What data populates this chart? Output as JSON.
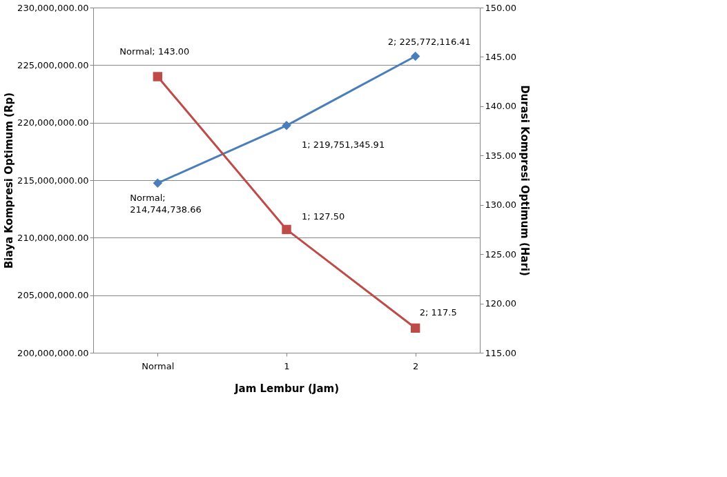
{
  "chart_data": {
    "type": "line",
    "xlabel": "Jam Lembur (Jam)",
    "ylabel": "Biaya Kompresi Optimum (Rp)",
    "y2label": "Durasi Kompresi Optimum (Hari)",
    "categories": [
      "Normal",
      "1",
      "2"
    ],
    "series": [
      {
        "color": "#4a7ebb",
        "marker": "diamond",
        "values": [
          214744738.66,
          219751345.91,
          225772116.41
        ],
        "value_labels": [
          "Normal;\n214,744,738.66",
          "1;  219,751,345.91",
          "2;  225,772,116.41"
        ]
      },
      {
        "color": "#be4b48",
        "marker": "square",
        "axis": "y2",
        "values": [
          143.0,
          127.5,
          117.5
        ],
        "value_labels": [
          "Normal; 143.00",
          "1; 127.50",
          "2; 117.5"
        ]
      }
    ],
    "ylim": [
      200000000,
      230000000
    ],
    "yticks": [
      {
        "value": 200000000,
        "label": "200,000,000.00"
      },
      {
        "value": 205000000,
        "label": "205,000,000.00"
      },
      {
        "value": 210000000,
        "label": "210,000,000.00"
      },
      {
        "value": 215000000,
        "label": "215,000,000.00"
      },
      {
        "value": 220000000,
        "label": "220,000,000.00"
      },
      {
        "value": 225000000,
        "label": "225,000,000.00"
      },
      {
        "value": 230000000,
        "label": "230,000,000.00"
      }
    ],
    "y2lim": [
      115,
      150
    ],
    "y2ticks": [
      {
        "value": 115,
        "label": "115.00"
      },
      {
        "value": 120,
        "label": "120.00"
      },
      {
        "value": 125,
        "label": "125.00"
      },
      {
        "value": 130,
        "label": "130.00"
      },
      {
        "value": 135,
        "label": "135.00"
      },
      {
        "value": 140,
        "label": "140.00"
      },
      {
        "value": 145,
        "label": "145.00"
      },
      {
        "value": 150,
        "label": "150.00"
      }
    ],
    "grid": "y",
    "line_style": "solid"
  }
}
